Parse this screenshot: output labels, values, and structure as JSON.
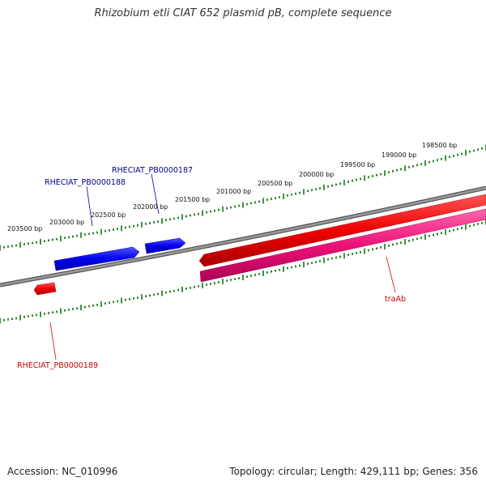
{
  "title": "Rhizobium etli CIAT 652 plasmid pB, complete sequence",
  "footer": {
    "accession": "Accession: NC_010996",
    "summary": "Topology: circular; Length: 429,111 bp; Genes: 356"
  },
  "ruler": {
    "labels": [
      "198500 bp",
      "199000 bp",
      "199500 bp",
      "200000 bp",
      "200500 bp",
      "201000 bp",
      "201500 bp",
      "202000 bp",
      "202500 bp",
      "203000 bp",
      "203500 bp"
    ]
  },
  "genes": [
    {
      "name": "RHECIAT_PB0000187",
      "strand": "forward",
      "color": "#0000ee"
    },
    {
      "name": "RHECIAT_PB0000188",
      "strand": "forward",
      "color": "#0000ee"
    },
    {
      "name": "RHECIAT_PB0000189",
      "strand": "reverse",
      "color": "#ee0000"
    },
    {
      "name": "traAb",
      "strand": "reverse",
      "color": "#ee0000"
    }
  ],
  "colors": {
    "backbone": "#808080",
    "forward_gene": "#0000ee",
    "reverse_gene": "#ee0000",
    "reverse_feature": "#ee1177",
    "ruler_ticks": "#117711",
    "forward_label": "#000088",
    "reverse_label": "#cc0000"
  }
}
